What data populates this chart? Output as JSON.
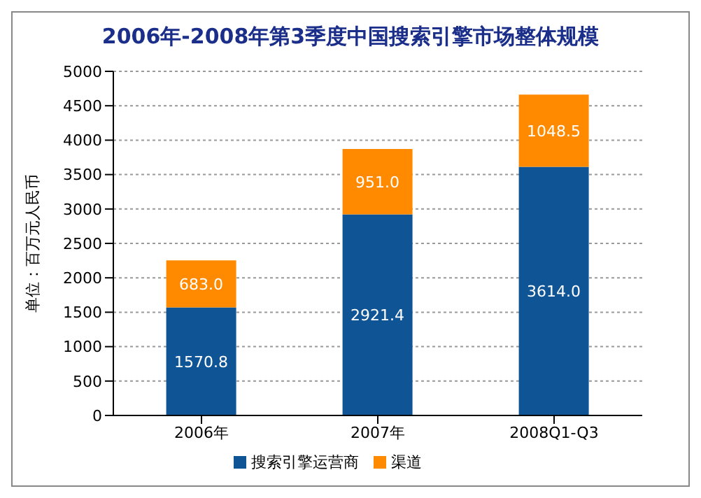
{
  "chart_data": {
    "type": "bar",
    "title": "2006年-2008年第3季度中国搜索引擎市场整体规模",
    "ylabel": "单位：百万元人民币",
    "categories": [
      "2006年",
      "2007年",
      "2008Q1-Q3"
    ],
    "stacked": true,
    "series": [
      {
        "name": "搜索引擎运营商",
        "color": "#0f5494",
        "values": [
          1570.8,
          2921.4,
          3614.0
        ],
        "value_labels": [
          "1570.8",
          "2921.4",
          "3614.0"
        ]
      },
      {
        "name": "渠道",
        "color": "#ff8a00",
        "values": [
          683.0,
          951.0,
          1048.5
        ],
        "value_labels": [
          "683.0",
          "951.0",
          "1048.5"
        ]
      }
    ],
    "ylim": [
      0,
      5000
    ],
    "yticks": [
      0,
      500,
      1000,
      1500,
      2000,
      2500,
      3000,
      3500,
      4000,
      4500,
      5000
    ],
    "grid": "y",
    "legend": "bottom"
  }
}
